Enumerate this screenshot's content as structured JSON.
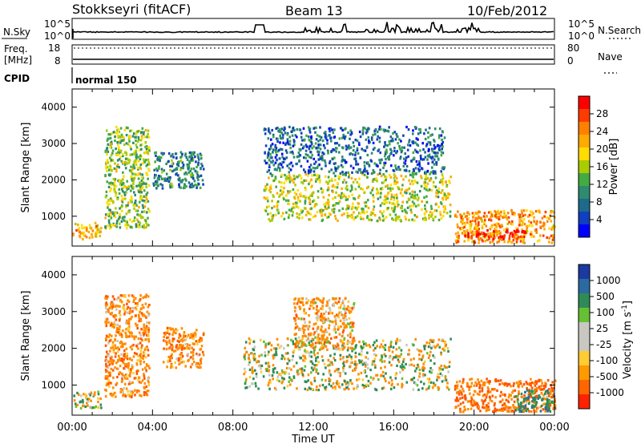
{
  "header": {
    "station": "Stokkseyri (fitACF)",
    "beam": "Beam 13",
    "date": "10/Feb/2012"
  },
  "top_panels": {
    "nsky": {
      "left_label": "N.Sky",
      "right_label": "N.Search",
      "left_ticks": [
        "10^5",
        "10^0"
      ],
      "right_ticks": [
        "10^5",
        "10^0"
      ]
    },
    "freq": {
      "label_line1": "Freq.",
      "label_line2": "[MHz]",
      "left_ticks": [
        "18",
        "8"
      ],
      "right_label": "Nave",
      "right_ticks": [
        "80",
        "0"
      ]
    },
    "cpid": {
      "label": "CPID",
      "value": "normal 150"
    }
  },
  "colorbars": {
    "power": {
      "label": "Power [dB]",
      "ticks": [
        "28",
        "24",
        "20",
        "16",
        "12",
        "8",
        "4"
      ],
      "colors": [
        "#ff0000",
        "#ff3c00",
        "#ff8000",
        "#ffaa00",
        "#ffdd00",
        "#aacc00",
        "#44aa44",
        "#2e8b6e",
        "#1e6a8a",
        "#1040c0",
        "#0000ff"
      ]
    },
    "velocity": {
      "label": "Velocity [m s",
      "label_sup": "-1",
      "label_end": "]",
      "ticks": [
        "1000",
        "500",
        "100",
        "25",
        "-25",
        "-100",
        "-500",
        "-1000"
      ],
      "colors": [
        "#1a3aa0",
        "#2a6aa0",
        "#2e8b57",
        "#66c033",
        "#c8c8c0",
        "#c8c8c0",
        "#ffcc33",
        "#ff9900",
        "#ff6600",
        "#ff2200"
      ]
    }
  },
  "axes": {
    "ylabel": "Slant Range [km]",
    "xlabel": "Time UT",
    "x_ticks": [
      "00:00",
      "04:00",
      "08:00",
      "12:00",
      "16:00",
      "20:00",
      "00:00"
    ],
    "y_ticks": [
      "4000",
      "3000",
      "2000",
      "1000"
    ]
  },
  "chart_data": [
    {
      "type": "heatmap",
      "title": "",
      "xlabel": "",
      "ylabel": "Slant Range [km]",
      "colorbar_label": "Power [dB]",
      "x_range": [
        "00:00",
        "24:00"
      ],
      "ylim": [
        180,
        4500
      ],
      "color_range": [
        0,
        30
      ],
      "regions": [
        {
          "t_start": 0.0,
          "t_end": 1.4,
          "r_min": 400,
          "r_max": 850,
          "value": 20
        },
        {
          "t_start": 1.6,
          "t_end": 3.8,
          "r_min": 700,
          "r_max": 3500,
          "value": 14
        },
        {
          "t_start": 4.0,
          "t_end": 6.5,
          "r_min": 1800,
          "r_max": 2800,
          "value": 8
        },
        {
          "t_start": 9.5,
          "t_end": 18.8,
          "r_min": 900,
          "r_max": 2200,
          "value": 16
        },
        {
          "t_start": 9.5,
          "t_end": 18.5,
          "r_min": 2200,
          "r_max": 3500,
          "value": 6
        },
        {
          "t_start": 19.0,
          "t_end": 24.0,
          "r_min": 300,
          "r_max": 1200,
          "value": 22
        },
        {
          "t_start": 19.5,
          "t_end": 22.5,
          "r_min": 400,
          "r_max": 650,
          "value": 29
        }
      ]
    },
    {
      "type": "heatmap",
      "title": "",
      "xlabel": "Time UT",
      "ylabel": "Slant Range [km]",
      "colorbar_label": "Velocity [m s-1]",
      "x_range": [
        "00:00",
        "24:00"
      ],
      "ylim": [
        180,
        4500
      ],
      "color_range": [
        -1000,
        1000
      ],
      "regions": [
        {
          "t_start": 0.0,
          "t_end": 1.4,
          "r_min": 400,
          "r_max": 850,
          "value": 0
        },
        {
          "t_start": 1.6,
          "t_end": 3.8,
          "r_min": 700,
          "r_max": 3500,
          "value": -200
        },
        {
          "t_start": 4.5,
          "t_end": 6.5,
          "r_min": 1500,
          "r_max": 2600,
          "value": -200
        },
        {
          "t_start": 8.5,
          "t_end": 18.8,
          "r_min": 900,
          "r_max": 2300,
          "value": 0
        },
        {
          "t_start": 11.0,
          "t_end": 14.0,
          "r_min": 2000,
          "r_max": 3400,
          "value": -150
        },
        {
          "t_start": 19.0,
          "t_end": 24.0,
          "r_min": 300,
          "r_max": 1200,
          "value": -300
        },
        {
          "t_start": 22.0,
          "t_end": 24.0,
          "r_min": 300,
          "r_max": 900,
          "value": 200
        }
      ]
    }
  ]
}
